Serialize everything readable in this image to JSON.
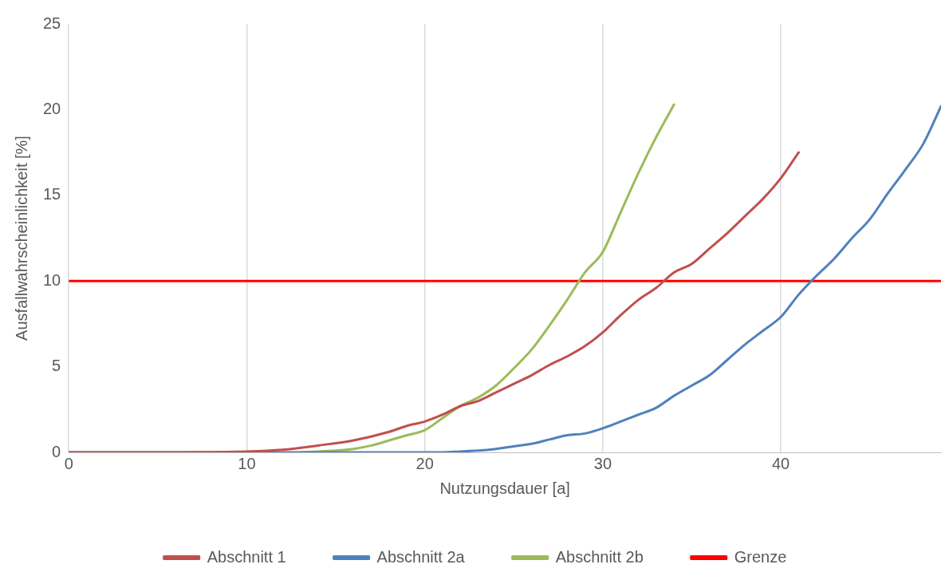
{
  "chart_data": {
    "type": "line",
    "xlabel": "Nutzungsdauer [a]",
    "ylabel": "Ausfallwahrscheinlichkeit [%]",
    "xlim": [
      0,
      49
    ],
    "xticks": [
      0,
      10,
      20,
      30,
      40
    ],
    "ylim": [
      0,
      25
    ],
    "yticks": [
      0,
      5,
      10,
      15,
      20,
      25
    ],
    "grid": "x",
    "legend": "bottom",
    "marker": "none",
    "line_style": "solid",
    "series": [
      {
        "name": "Abschnitt 1",
        "color": "#c0504d",
        "x": [
          0,
          5,
          10,
          12,
          14,
          16,
          18,
          19,
          20,
          21,
          22,
          23,
          24,
          25,
          26,
          27,
          28,
          29,
          30,
          31,
          32,
          33,
          34,
          35,
          36,
          37,
          38,
          39,
          40,
          41
        ],
        "values": [
          0,
          0,
          0.05,
          0.15,
          0.4,
          0.7,
          1.2,
          1.55,
          1.8,
          2.2,
          2.7,
          3.0,
          3.5,
          4.0,
          4.5,
          5.1,
          5.6,
          6.2,
          7.0,
          8.0,
          8.9,
          9.6,
          10.5,
          11.0,
          11.9,
          12.8,
          13.8,
          14.8,
          16.0,
          17.5
        ]
      },
      {
        "name": "Abschnitt 2a",
        "color": "#4f81bd",
        "x": [
          0,
          10,
          21,
          22,
          23,
          24,
          25,
          26,
          27,
          28,
          29,
          30,
          31,
          32,
          33,
          34,
          35,
          36,
          37,
          38,
          39,
          40,
          41,
          42,
          43,
          44,
          45,
          46,
          47,
          48,
          49
        ],
        "values": [
          0,
          0,
          0,
          0.05,
          0.1,
          0.2,
          0.35,
          0.5,
          0.75,
          1.0,
          1.1,
          1.4,
          1.8,
          2.2,
          2.6,
          3.3,
          3.9,
          4.5,
          5.4,
          6.3,
          7.1,
          7.9,
          9.2,
          10.3,
          11.3,
          12.5,
          13.6,
          15.1,
          16.5,
          18.0,
          20.2
        ]
      },
      {
        "name": "Abschnitt 2b",
        "color": "#9bbb59",
        "x": [
          13,
          14,
          15,
          16,
          17,
          18,
          19,
          20,
          21,
          22,
          23,
          24,
          25,
          26,
          27,
          28,
          29,
          30,
          31,
          32,
          33,
          34
        ],
        "values": [
          0,
          0.05,
          0.1,
          0.2,
          0.4,
          0.7,
          1.0,
          1.3,
          2.0,
          2.7,
          3.2,
          3.9,
          4.9,
          6.0,
          7.4,
          8.9,
          10.5,
          11.7,
          14.0,
          16.3,
          18.4,
          20.3
        ]
      },
      {
        "name": "Grenze",
        "color": "#ff0000",
        "x": [
          0,
          49
        ],
        "values": [
          10,
          10
        ]
      }
    ]
  }
}
